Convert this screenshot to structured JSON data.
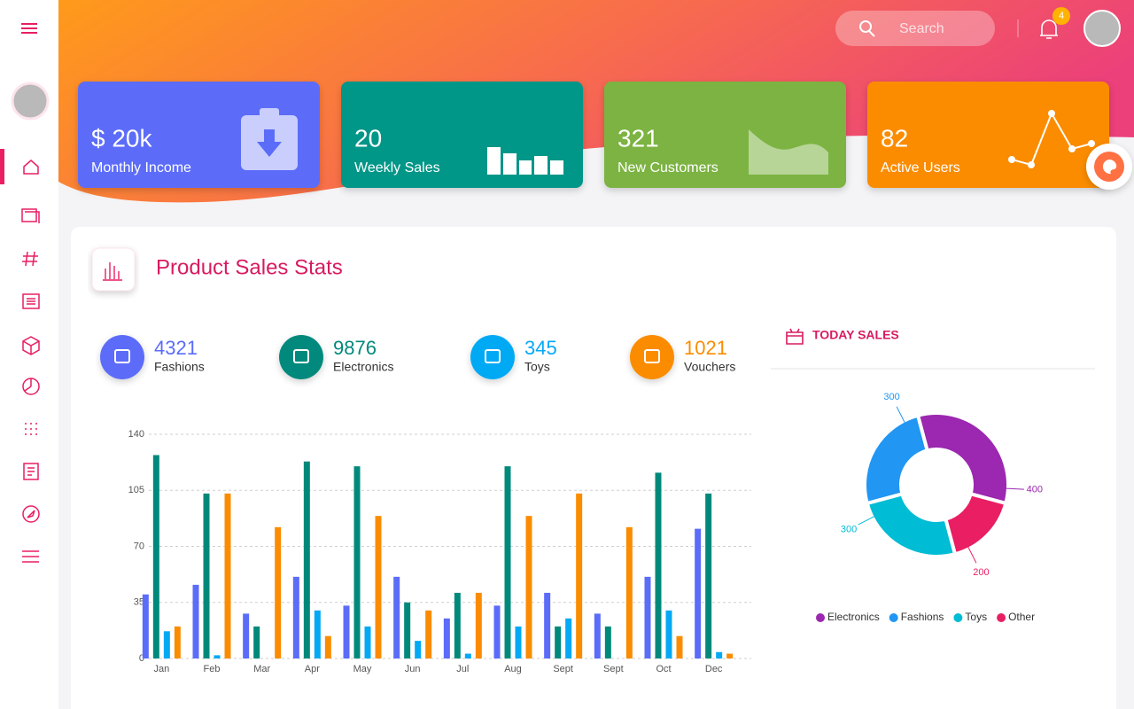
{
  "header": {
    "search_placeholder": "Search",
    "notification_count": "4"
  },
  "cards": [
    {
      "value": "$ 20k",
      "label": "Monthly Income"
    },
    {
      "value": "20",
      "label": "Weekly Sales"
    },
    {
      "value": "321",
      "label": "New Customers"
    },
    {
      "value": "82",
      "label": "Active Users"
    }
  ],
  "panel": {
    "title": "Product Sales Stats",
    "stats": [
      {
        "value": "4321",
        "label": "Fashions"
      },
      {
        "value": "9876",
        "label": "Electronics"
      },
      {
        "value": "345",
        "label": "Toys"
      },
      {
        "value": "1021",
        "label": "Vouchers"
      }
    ],
    "today_sales_title": "TODAY SALES"
  },
  "chart_data": [
    {
      "type": "bar",
      "categories": [
        "Jan",
        "Feb",
        "Mar",
        "Apr",
        "May",
        "Jun",
        "Jul",
        "Aug",
        "Sept",
        "Sept",
        "Oct",
        "Dec"
      ],
      "series": [
        {
          "color": "#5b6cf9",
          "values": [
            40,
            46,
            28,
            51,
            33,
            51,
            25,
            33,
            41,
            28,
            51,
            81
          ]
        },
        {
          "color": "#00897b",
          "values": [
            127,
            103,
            20,
            123,
            120,
            35,
            41,
            120,
            20,
            20,
            116,
            103
          ]
        },
        {
          "color": "#03a9f4",
          "values": [
            17,
            2,
            0,
            30,
            20,
            11,
            3,
            20,
            25,
            0,
            30,
            4
          ]
        },
        {
          "color": "#fb8c00",
          "values": [
            20,
            103,
            82,
            14,
            89,
            30,
            41,
            89,
            103,
            82,
            14,
            3
          ]
        }
      ],
      "ylim": [
        0,
        140
      ],
      "yticks": [
        0,
        35,
        70,
        105,
        140
      ],
      "grid": true
    },
    {
      "type": "donut",
      "categories": [
        "Electronics",
        "Fashions",
        "Toys",
        "Other"
      ],
      "values": [
        400,
        300,
        300,
        200
      ],
      "colors": [
        "#9c27b0",
        "#2196f3",
        "#00bcd4",
        "#e91e63"
      ]
    }
  ]
}
